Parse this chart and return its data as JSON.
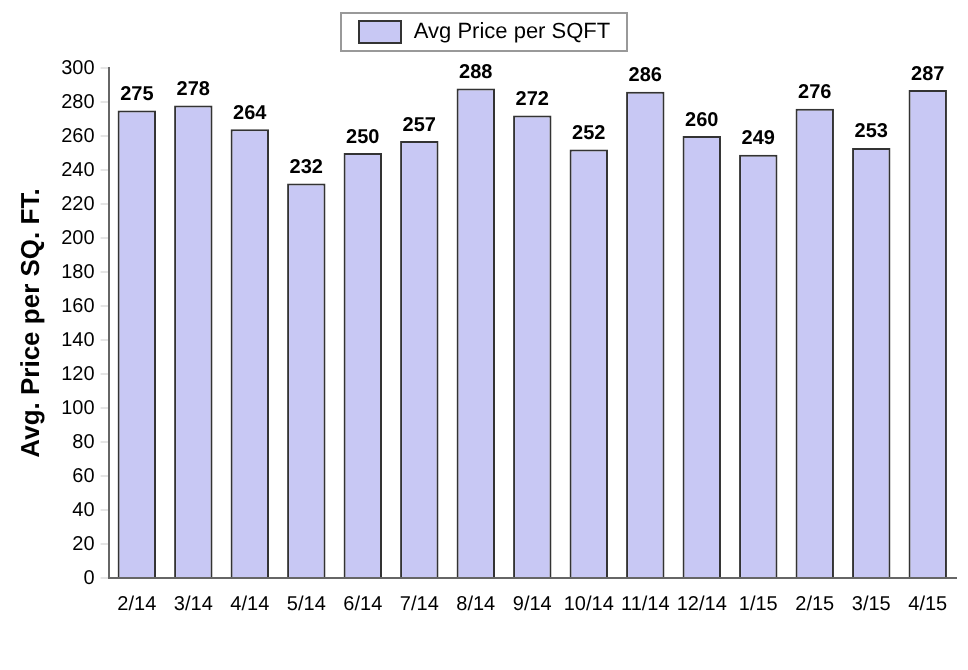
{
  "chart_data": {
    "type": "bar",
    "ylabel": "Avg. Price per SQ. FT.",
    "categories": [
      "2/14",
      "3/14",
      "4/14",
      "5/14",
      "6/14",
      "7/14",
      "8/14",
      "9/14",
      "10/14",
      "11/14",
      "12/14",
      "1/15",
      "2/15",
      "3/15",
      "4/15"
    ],
    "series": [
      {
        "name": "Avg Price per SQFT",
        "color": "#c8c8f4",
        "values": [
          275,
          278,
          264,
          232,
          250,
          257,
          288,
          272,
          252,
          286,
          260,
          249,
          276,
          253,
          287
        ]
      }
    ],
    "ylim": [
      0,
      300
    ],
    "yticks": [
      0,
      20,
      40,
      60,
      80,
      100,
      120,
      140,
      160,
      180,
      200,
      220,
      240,
      260,
      280,
      300
    ],
    "grid": false,
    "legend": "top",
    "data_labels": true
  }
}
